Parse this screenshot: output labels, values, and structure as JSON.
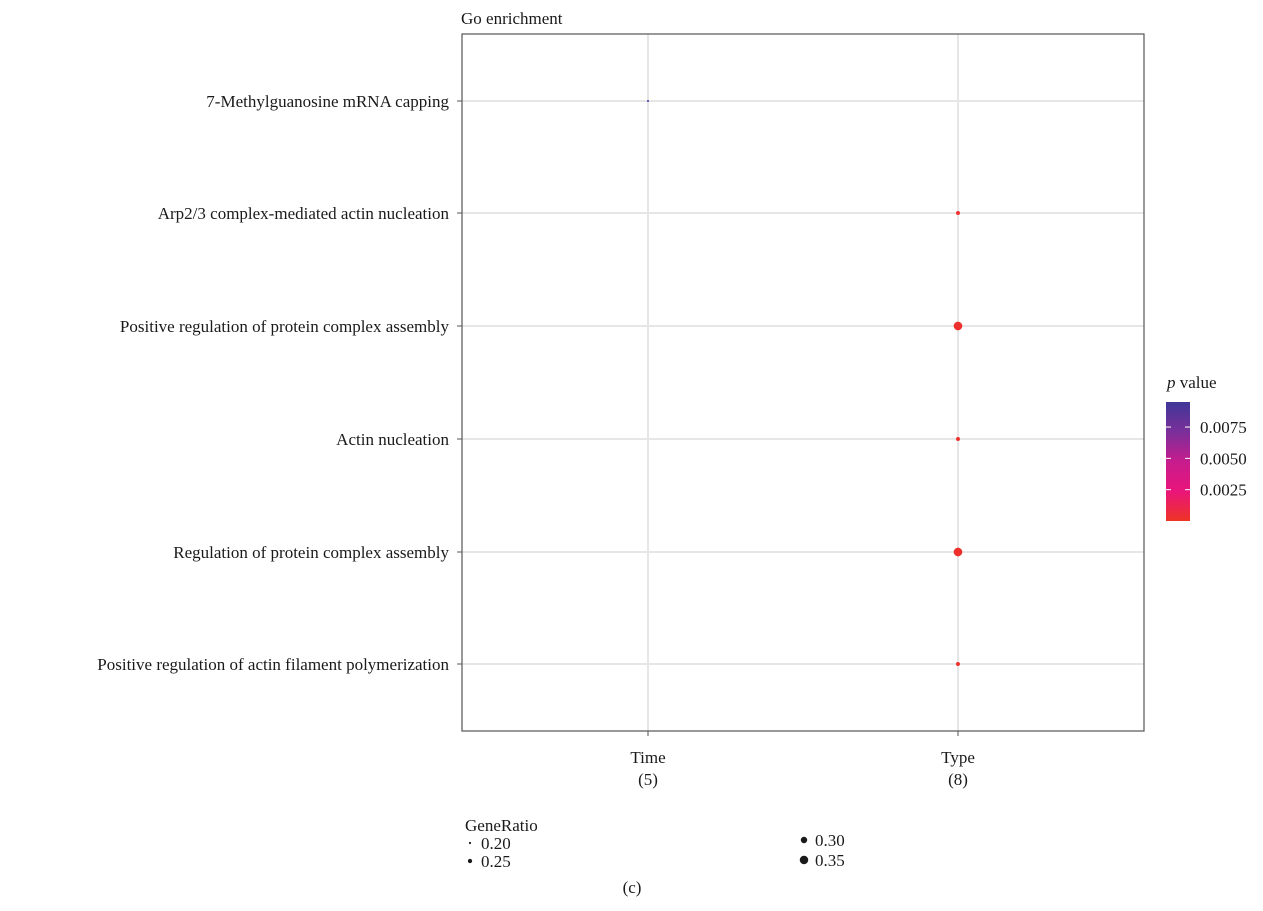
{
  "chart_data": {
    "type": "scatter",
    "title": "Go enrichment",
    "caption": "(c)",
    "categories_x": [
      {
        "name": "Time",
        "count": "(5)"
      },
      {
        "name": "Type",
        "count": "(8)"
      }
    ],
    "categories_y": [
      "7-Methylguanosine mRNA capping",
      "Arp2/3 complex-mediated actin nucleation",
      "Positive regulation of protein complex assembly",
      "Actin nucleation",
      "Regulation of protein complex assembly",
      "Positive regulation of actin filament polymerization"
    ],
    "points": [
      {
        "x": "Time",
        "y": "7-Methylguanosine mRNA capping",
        "gene_ratio": 0.2,
        "p_value": 0.0095
      },
      {
        "x": "Type",
        "y": "Arp2/3 complex-mediated actin nucleation",
        "gene_ratio": 0.25,
        "p_value": 0.0002
      },
      {
        "x": "Type",
        "y": "Positive regulation of protein complex assembly",
        "gene_ratio": 0.375,
        "p_value": 0.0002
      },
      {
        "x": "Type",
        "y": "Actin nucleation",
        "gene_ratio": 0.25,
        "p_value": 0.0002
      },
      {
        "x": "Type",
        "y": "Regulation of protein complex assembly",
        "gene_ratio": 0.375,
        "p_value": 0.0002
      },
      {
        "x": "Type",
        "y": "Positive regulation of actin filament polymerization",
        "gene_ratio": 0.25,
        "p_value": 0.0002
      }
    ],
    "color_legend": {
      "title_italic": "p",
      "title_rest": " value",
      "ticks": [
        "0.0075",
        "0.0050",
        "0.0025"
      ],
      "tick_values": [
        0.0075,
        0.005,
        0.0025
      ],
      "range": [
        0.0,
        0.0095
      ],
      "colors": [
        "#ee3325",
        "#e9157a",
        "#c71c8e",
        "#7a2f9a",
        "#3f3797"
      ]
    },
    "size_legend": {
      "title": "GeneRatio",
      "items": [
        "0.20",
        "0.25",
        "0.30",
        "0.35"
      ],
      "values": [
        0.2,
        0.25,
        0.3,
        0.35
      ]
    },
    "grid": true
  }
}
